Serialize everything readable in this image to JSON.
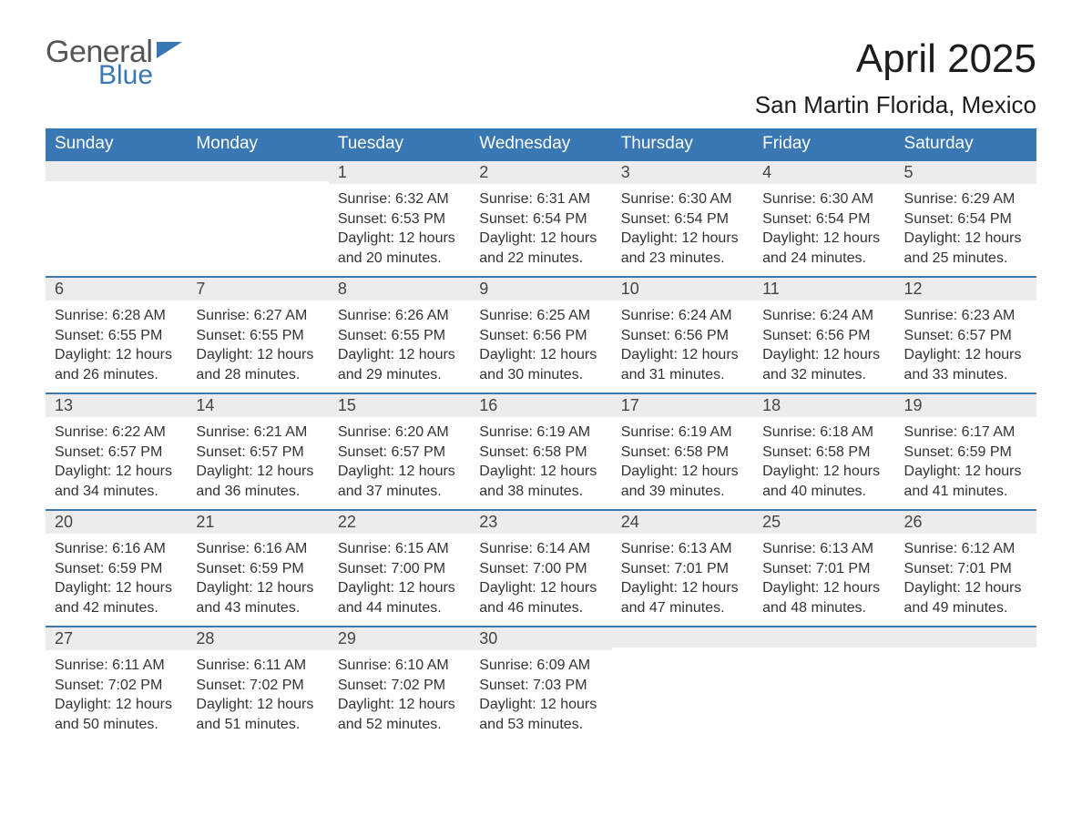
{
  "brand": {
    "word1": "General",
    "word2": "Blue"
  },
  "title": "April 2025",
  "location": "San Martin Florida, Mexico",
  "colors": {
    "header_bg": "#3a78b5",
    "header_text": "#ffffff",
    "daybar_bg": "#ececec",
    "daybar_border": "#3a78b5",
    "body_text": "#333333",
    "page_bg": "#ffffff"
  },
  "layout": {
    "columns": 7,
    "rows": 5,
    "first_weekday_index": 2
  },
  "weekdays": [
    "Sunday",
    "Monday",
    "Tuesday",
    "Wednesday",
    "Thursday",
    "Friday",
    "Saturday"
  ],
  "label": {
    "sunrise": "Sunrise:",
    "sunset": "Sunset:",
    "daylight": "Daylight:",
    "hours": "hours",
    "and": "and",
    "minutes": "minutes."
  },
  "weeks": [
    [
      null,
      null,
      {
        "n": "1",
        "sunrise": "6:32 AM",
        "sunset": "6:53 PM",
        "dl_h": "12",
        "dl_m": "20"
      },
      {
        "n": "2",
        "sunrise": "6:31 AM",
        "sunset": "6:54 PM",
        "dl_h": "12",
        "dl_m": "22"
      },
      {
        "n": "3",
        "sunrise": "6:30 AM",
        "sunset": "6:54 PM",
        "dl_h": "12",
        "dl_m": "23"
      },
      {
        "n": "4",
        "sunrise": "6:30 AM",
        "sunset": "6:54 PM",
        "dl_h": "12",
        "dl_m": "24"
      },
      {
        "n": "5",
        "sunrise": "6:29 AM",
        "sunset": "6:54 PM",
        "dl_h": "12",
        "dl_m": "25"
      }
    ],
    [
      {
        "n": "6",
        "sunrise": "6:28 AM",
        "sunset": "6:55 PM",
        "dl_h": "12",
        "dl_m": "26"
      },
      {
        "n": "7",
        "sunrise": "6:27 AM",
        "sunset": "6:55 PM",
        "dl_h": "12",
        "dl_m": "28"
      },
      {
        "n": "8",
        "sunrise": "6:26 AM",
        "sunset": "6:55 PM",
        "dl_h": "12",
        "dl_m": "29"
      },
      {
        "n": "9",
        "sunrise": "6:25 AM",
        "sunset": "6:56 PM",
        "dl_h": "12",
        "dl_m": "30"
      },
      {
        "n": "10",
        "sunrise": "6:24 AM",
        "sunset": "6:56 PM",
        "dl_h": "12",
        "dl_m": "31"
      },
      {
        "n": "11",
        "sunrise": "6:24 AM",
        "sunset": "6:56 PM",
        "dl_h": "12",
        "dl_m": "32"
      },
      {
        "n": "12",
        "sunrise": "6:23 AM",
        "sunset": "6:57 PM",
        "dl_h": "12",
        "dl_m": "33"
      }
    ],
    [
      {
        "n": "13",
        "sunrise": "6:22 AM",
        "sunset": "6:57 PM",
        "dl_h": "12",
        "dl_m": "34"
      },
      {
        "n": "14",
        "sunrise": "6:21 AM",
        "sunset": "6:57 PM",
        "dl_h": "12",
        "dl_m": "36"
      },
      {
        "n": "15",
        "sunrise": "6:20 AM",
        "sunset": "6:57 PM",
        "dl_h": "12",
        "dl_m": "37"
      },
      {
        "n": "16",
        "sunrise": "6:19 AM",
        "sunset": "6:58 PM",
        "dl_h": "12",
        "dl_m": "38"
      },
      {
        "n": "17",
        "sunrise": "6:19 AM",
        "sunset": "6:58 PM",
        "dl_h": "12",
        "dl_m": "39"
      },
      {
        "n": "18",
        "sunrise": "6:18 AM",
        "sunset": "6:58 PM",
        "dl_h": "12",
        "dl_m": "40"
      },
      {
        "n": "19",
        "sunrise": "6:17 AM",
        "sunset": "6:59 PM",
        "dl_h": "12",
        "dl_m": "41"
      }
    ],
    [
      {
        "n": "20",
        "sunrise": "6:16 AM",
        "sunset": "6:59 PM",
        "dl_h": "12",
        "dl_m": "42"
      },
      {
        "n": "21",
        "sunrise": "6:16 AM",
        "sunset": "6:59 PM",
        "dl_h": "12",
        "dl_m": "43"
      },
      {
        "n": "22",
        "sunrise": "6:15 AM",
        "sunset": "7:00 PM",
        "dl_h": "12",
        "dl_m": "44"
      },
      {
        "n": "23",
        "sunrise": "6:14 AM",
        "sunset": "7:00 PM",
        "dl_h": "12",
        "dl_m": "46"
      },
      {
        "n": "24",
        "sunrise": "6:13 AM",
        "sunset": "7:01 PM",
        "dl_h": "12",
        "dl_m": "47"
      },
      {
        "n": "25",
        "sunrise": "6:13 AM",
        "sunset": "7:01 PM",
        "dl_h": "12",
        "dl_m": "48"
      },
      {
        "n": "26",
        "sunrise": "6:12 AM",
        "sunset": "7:01 PM",
        "dl_h": "12",
        "dl_m": "49"
      }
    ],
    [
      {
        "n": "27",
        "sunrise": "6:11 AM",
        "sunset": "7:02 PM",
        "dl_h": "12",
        "dl_m": "50"
      },
      {
        "n": "28",
        "sunrise": "6:11 AM",
        "sunset": "7:02 PM",
        "dl_h": "12",
        "dl_m": "51"
      },
      {
        "n": "29",
        "sunrise": "6:10 AM",
        "sunset": "7:02 PM",
        "dl_h": "12",
        "dl_m": "52"
      },
      {
        "n": "30",
        "sunrise": "6:09 AM",
        "sunset": "7:03 PM",
        "dl_h": "12",
        "dl_m": "53"
      },
      null,
      null,
      null
    ]
  ]
}
